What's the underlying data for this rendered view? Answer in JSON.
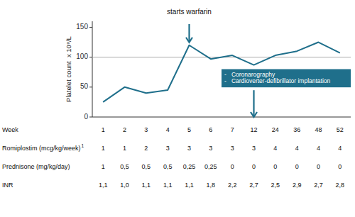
{
  "chart_data": {
    "type": "line",
    "categories": [
      1,
      2,
      3,
      4,
      5,
      6,
      7,
      12,
      24,
      36,
      48,
      52
    ],
    "xlabel": "Week",
    "ylabel": "Platelet count  x 10⁹/L",
    "values": [
      25,
      50,
      40,
      45,
      120,
      97,
      103,
      87,
      103,
      110,
      125,
      107
    ],
    "color": "#1f6f8b",
    "ylim": [
      0,
      160
    ],
    "yticks": [
      0,
      50,
      100,
      150
    ],
    "grid": false,
    "reference_line": {
      "value": 100,
      "color": "#aaaaaa"
    },
    "annotations": [
      {
        "text": "starts warfarin",
        "category": 5,
        "color": "#1f6f8b"
      },
      {
        "lines": [
          "-   Coronarography",
          "-   Cardioverter-defibrillator implantation"
        ],
        "category": 12,
        "color": "#1f6f8b"
      }
    ],
    "table": [
      {
        "label": "Romiplostim (mcg/kg/week)",
        "superscript": "1",
        "values": [
          "1",
          "1",
          "2",
          "3",
          "3",
          "3",
          "3",
          "3",
          "4",
          "4",
          "4",
          "4"
        ]
      },
      {
        "label": "Prednisone (mg/kg/day)",
        "values": [
          "1",
          "0,5",
          "0,5",
          "0,5",
          "0,25",
          "0,25",
          "0",
          "0",
          "0",
          "0",
          "0",
          "0"
        ]
      },
      {
        "label": "INR",
        "values": [
          "1,1",
          "1,0",
          "1,1",
          "1,1",
          "1,1",
          "1,8",
          "2,2",
          "2,7",
          "2,5",
          "2,9",
          "2,7",
          "2,8"
        ]
      }
    ]
  }
}
